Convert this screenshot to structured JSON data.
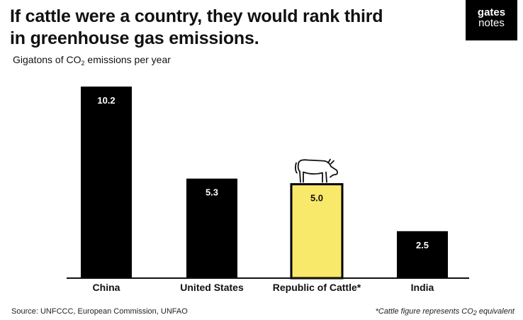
{
  "header": {
    "title_line1": "If cattle were a country, they would rank third",
    "title_line2": "in greenhouse gas emissions."
  },
  "logo": {
    "line1": "gates",
    "line2": "notes"
  },
  "colors": {
    "bar": "#000000",
    "highlight": "#f9e96a",
    "axis": "#111111"
  },
  "footer": {
    "source": "Source: UNFCCC, European Commission, UNFAO",
    "note_start": "*Cattle figure represents CO",
    "note_sub": "2",
    "note_end": " equivalent"
  },
  "chart_data": {
    "type": "bar",
    "ylabel_pre": "Gigatons of CO",
    "ylabel_sub": "2",
    "ylabel_post": " emissions per year",
    "categories": [
      "China",
      "United States",
      "Republic of Cattle*",
      "India"
    ],
    "values": [
      10.2,
      5.3,
      5.0,
      2.5
    ],
    "value_labels": [
      "10.2",
      "5.3",
      "5.0",
      "2.5"
    ],
    "highlight_index": 2,
    "highlight_icon": "cow-icon",
    "ylim": [
      0,
      10.2
    ],
    "grid": false
  }
}
